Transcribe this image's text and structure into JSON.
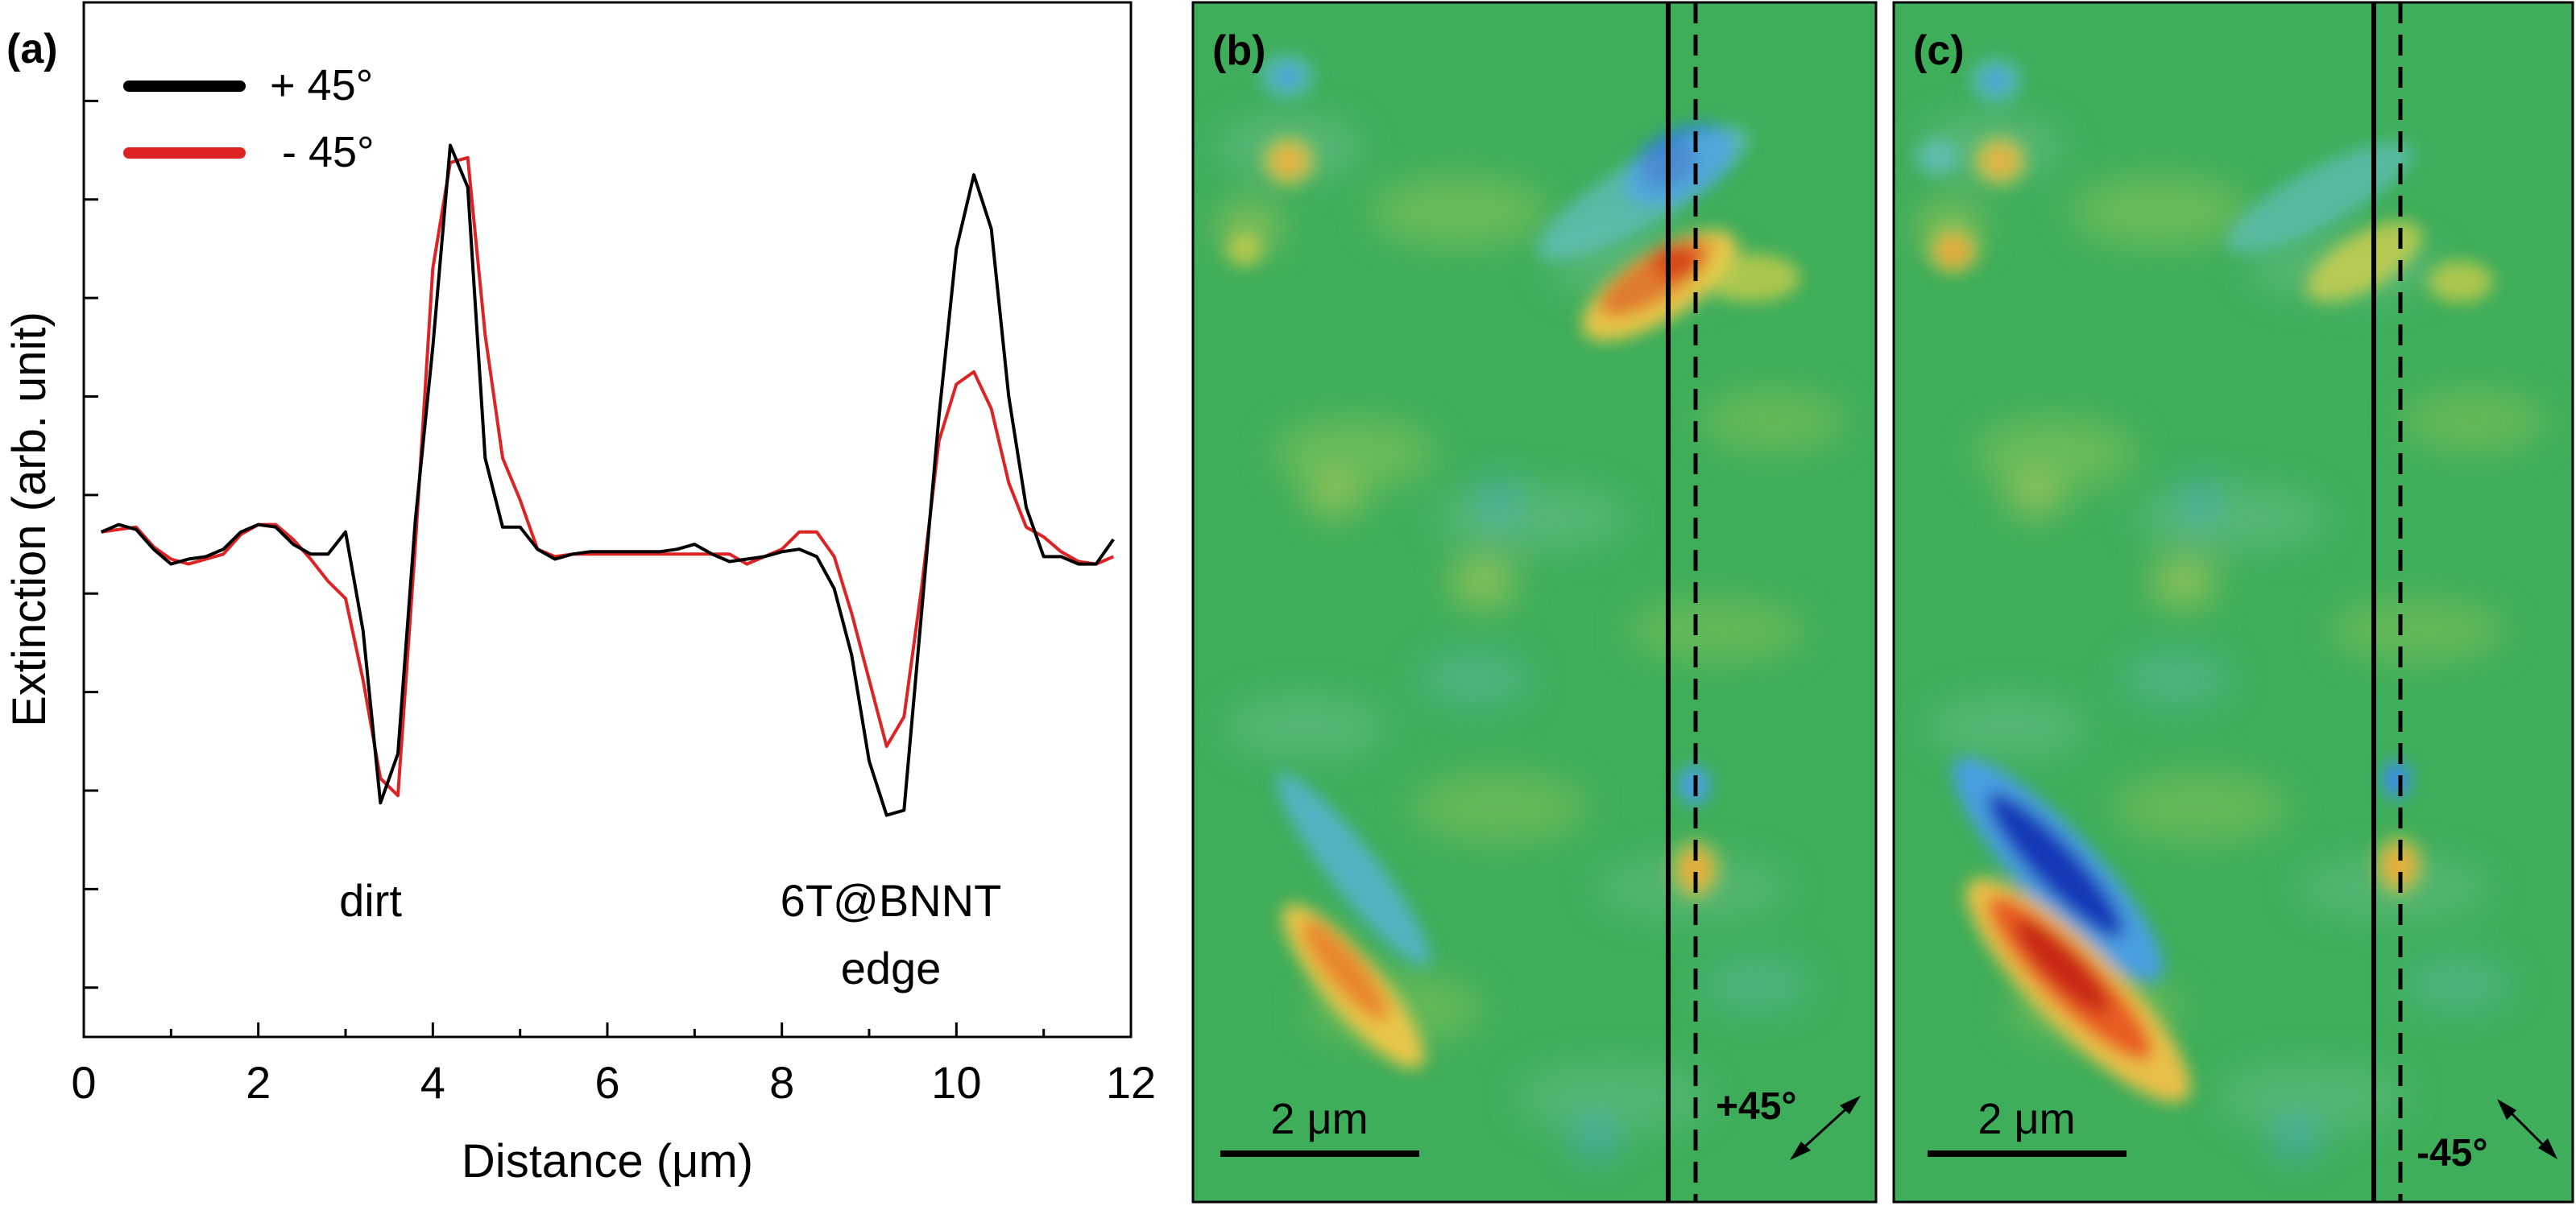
{
  "chart_data": [
    {
      "panel_label": "(a)",
      "type": "line",
      "xlabel": "Distance (μm)",
      "ylabel": "Extinction (arb. unit)",
      "xlim": [
        0,
        12
      ],
      "ylim": [
        -2.0,
        2.2
      ],
      "xticks": [
        0,
        2,
        4,
        6,
        8,
        10,
        12
      ],
      "xtick_labels": [
        "0",
        "2",
        "4",
        "6",
        "8",
        "10",
        "12"
      ],
      "yticks": [
        -1.8,
        -1.4,
        -1.0,
        -0.6,
        -0.2,
        0.2,
        0.6,
        1.0,
        1.4,
        1.8
      ],
      "legend_position": "top-left",
      "annotations": [
        {
          "text": "dirt",
          "x": 3.3,
          "y": -1.28
        },
        {
          "text": "6T@BNNT",
          "x": 9.4,
          "y": -1.28
        },
        {
          "text": "edge",
          "x": 9.4,
          "y": -1.52
        }
      ],
      "series": [
        {
          "name": "+ 45°",
          "color": "#000000",
          "x": [
            0.2,
            0.4,
            0.6,
            0.8,
            1.0,
            1.2,
            1.4,
            1.6,
            1.8,
            2.0,
            2.2,
            2.4,
            2.6,
            2.8,
            3.0,
            3.2,
            3.4,
            3.6,
            3.8,
            4.0,
            4.2,
            4.4,
            4.6,
            4.8,
            5.0,
            5.2,
            5.4,
            5.6,
            5.8,
            6.0,
            6.2,
            6.4,
            6.6,
            6.8,
            7.0,
            7.2,
            7.4,
            7.6,
            7.8,
            8.0,
            8.2,
            8.4,
            8.6,
            8.8,
            9.0,
            9.2,
            9.4,
            9.6,
            9.8,
            10.0,
            10.2,
            10.4,
            10.6,
            10.8,
            11.0,
            11.2,
            11.4,
            11.6,
            11.8
          ],
          "values": [
            0.05,
            0.08,
            0.06,
            -0.02,
            -0.08,
            -0.06,
            -0.05,
            -0.02,
            0.05,
            0.08,
            0.07,
            0.0,
            -0.04,
            -0.04,
            0.05,
            -0.35,
            -1.05,
            -0.85,
            0.1,
            0.8,
            1.62,
            1.45,
            0.35,
            0.07,
            0.07,
            -0.02,
            -0.06,
            -0.04,
            -0.03,
            -0.03,
            -0.03,
            -0.03,
            -0.03,
            -0.02,
            0.0,
            -0.04,
            -0.07,
            -0.06,
            -0.05,
            -0.03,
            -0.02,
            -0.05,
            -0.18,
            -0.45,
            -0.88,
            -1.1,
            -1.08,
            -0.28,
            0.52,
            1.2,
            1.5,
            1.28,
            0.6,
            0.15,
            -0.05,
            -0.05,
            -0.08,
            -0.08,
            0.02
          ]
        },
        {
          "name": "- 45°",
          "color": "#dd2323",
          "x": [
            0.2,
            0.4,
            0.6,
            0.8,
            1.0,
            1.2,
            1.4,
            1.6,
            1.8,
            2.0,
            2.2,
            2.4,
            2.6,
            2.8,
            3.0,
            3.2,
            3.4,
            3.6,
            3.8,
            4.0,
            4.2,
            4.4,
            4.6,
            4.8,
            5.0,
            5.2,
            5.4,
            5.6,
            5.8,
            6.0,
            6.2,
            6.4,
            6.6,
            6.8,
            7.0,
            7.2,
            7.4,
            7.6,
            7.8,
            8.0,
            8.2,
            8.4,
            8.6,
            8.8,
            9.0,
            9.2,
            9.4,
            9.6,
            9.8,
            10.0,
            10.2,
            10.4,
            10.6,
            10.8,
            11.0,
            11.2,
            11.4,
            11.6,
            11.8
          ],
          "values": [
            0.05,
            0.06,
            0.07,
            -0.01,
            -0.06,
            -0.08,
            -0.06,
            -0.04,
            0.04,
            0.08,
            0.08,
            0.02,
            -0.06,
            -0.15,
            -0.22,
            -0.55,
            -0.95,
            -1.02,
            0.0,
            1.12,
            1.55,
            1.57,
            0.85,
            0.35,
            0.18,
            -0.02,
            -0.05,
            -0.04,
            -0.04,
            -0.04,
            -0.04,
            -0.04,
            -0.04,
            -0.04,
            -0.04,
            -0.04,
            -0.04,
            -0.08,
            -0.05,
            -0.02,
            0.05,
            0.05,
            -0.05,
            -0.28,
            -0.55,
            -0.82,
            -0.7,
            -0.18,
            0.42,
            0.65,
            0.7,
            0.55,
            0.25,
            0.07,
            0.03,
            -0.03,
            -0.07,
            -0.08,
            -0.05
          ]
        }
      ]
    },
    {
      "panel_label": "(b)",
      "type": "heatmap",
      "colormap": "jet",
      "scale_bar": "2 μm",
      "polarization": "+45°"
    },
    {
      "panel_label": "(c)",
      "type": "heatmap",
      "colormap": "jet",
      "scale_bar": "2 μm",
      "polarization": "-45°"
    }
  ],
  "colors": {
    "map_background": "#3fae5a",
    "map_red": "#e83020",
    "map_blue": "#1848c8",
    "map_yellow": "#d8d04a"
  }
}
